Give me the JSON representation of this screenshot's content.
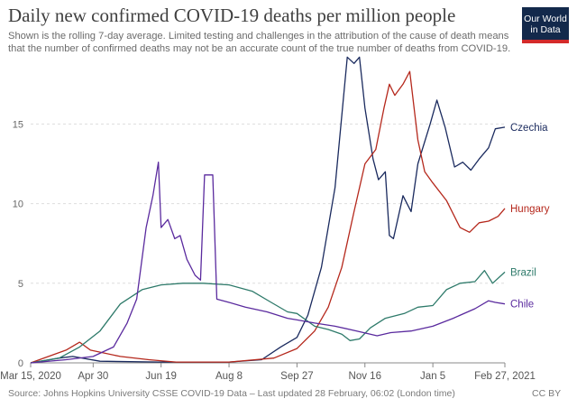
{
  "header": {
    "title": "Daily new confirmed COVID-19 deaths per million people",
    "subtitle": "Shown is the rolling 7-day average. Limited testing and challenges in the attribution of the cause of death means that the number of confirmed deaths may not be an accurate count of the true number of deaths from COVID-19."
  },
  "logo": {
    "line1": "Our World",
    "line2": "in Data",
    "bg": "#13294b",
    "accent": "#d42a2a"
  },
  "footer": {
    "source": "Source: Johns Hopkins University CSSE COVID-19 Data – Last updated 28 February, 06:02 (London time)",
    "license": "CC BY"
  },
  "chart_data": {
    "type": "line",
    "title": "Daily new confirmed COVID-19 deaths per million people",
    "xlabel": "",
    "ylabel": "",
    "x_range": [
      "2020-03-15",
      "2021-02-27"
    ],
    "ylim": [
      0,
      19.5
    ],
    "yticks": [
      0,
      5,
      10,
      15
    ],
    "xticks": [
      {
        "date": "2020-03-15",
        "label": "Mar 15, 2020"
      },
      {
        "date": "2020-04-30",
        "label": "Apr 30"
      },
      {
        "date": "2020-06-19",
        "label": "Jun 19"
      },
      {
        "date": "2020-08-08",
        "label": "Aug 8"
      },
      {
        "date": "2020-09-27",
        "label": "Sep 27"
      },
      {
        "date": "2020-11-16",
        "label": "Nov 16"
      },
      {
        "date": "2021-01-05",
        "label": "Jan 5"
      },
      {
        "date": "2021-02-27",
        "label": "Feb 27, 2021"
      }
    ],
    "grid": "horizontal-dashed",
    "legend": "line-end labels",
    "series": [
      {
        "name": "Czechia",
        "color": "#1a2a5e",
        "points": [
          [
            "2020-03-15",
            0
          ],
          [
            "2020-04-05",
            0.3
          ],
          [
            "2020-04-15",
            0.4
          ],
          [
            "2020-05-05",
            0.1
          ],
          [
            "2020-06-19",
            0.05
          ],
          [
            "2020-08-08",
            0.05
          ],
          [
            "2020-09-01",
            0.2
          ],
          [
            "2020-09-15",
            1
          ],
          [
            "2020-09-27",
            1.6
          ],
          [
            "2020-10-05",
            3
          ],
          [
            "2020-10-15",
            6
          ],
          [
            "2020-10-25",
            11
          ],
          [
            "2020-11-03",
            19.2
          ],
          [
            "2020-11-08",
            18.8
          ],
          [
            "2020-11-12",
            19.2
          ],
          [
            "2020-11-16",
            16
          ],
          [
            "2020-11-22",
            12.8
          ],
          [
            "2020-11-26",
            11.5
          ],
          [
            "2020-12-01",
            12
          ],
          [
            "2020-12-04",
            8
          ],
          [
            "2020-12-07",
            7.8
          ],
          [
            "2020-12-14",
            10.5
          ],
          [
            "2020-12-20",
            9.5
          ],
          [
            "2020-12-25",
            12.5
          ],
          [
            "2021-01-03",
            15
          ],
          [
            "2021-01-08",
            16.5
          ],
          [
            "2021-01-14",
            14.8
          ],
          [
            "2021-01-21",
            12.3
          ],
          [
            "2021-01-27",
            12.6
          ],
          [
            "2021-02-02",
            12.1
          ],
          [
            "2021-02-08",
            12.8
          ],
          [
            "2021-02-15",
            13.5
          ],
          [
            "2021-02-20",
            14.7
          ],
          [
            "2021-02-27",
            14.8
          ]
        ]
      },
      {
        "name": "Hungary",
        "color": "#b5281c",
        "points": [
          [
            "2020-03-15",
            0
          ],
          [
            "2020-04-10",
            0.8
          ],
          [
            "2020-04-20",
            1.3
          ],
          [
            "2020-04-28",
            0.8
          ],
          [
            "2020-05-20",
            0.4
          ],
          [
            "2020-06-10",
            0.2
          ],
          [
            "2020-06-30",
            0.05
          ],
          [
            "2020-08-08",
            0.05
          ],
          [
            "2020-09-10",
            0.3
          ],
          [
            "2020-09-27",
            0.9
          ],
          [
            "2020-10-10",
            2
          ],
          [
            "2020-10-20",
            3.5
          ],
          [
            "2020-10-30",
            6
          ],
          [
            "2020-11-08",
            9.5
          ],
          [
            "2020-11-16",
            12.5
          ],
          [
            "2020-11-24",
            13.4
          ],
          [
            "2020-11-30",
            16
          ],
          [
            "2020-12-04",
            17.5
          ],
          [
            "2020-12-08",
            16.8
          ],
          [
            "2020-12-14",
            17.5
          ],
          [
            "2020-12-19",
            18.3
          ],
          [
            "2020-12-25",
            14
          ],
          [
            "2020-12-30",
            12
          ],
          [
            "2021-01-05",
            11.3
          ],
          [
            "2021-01-15",
            10.2
          ],
          [
            "2021-01-25",
            8.5
          ],
          [
            "2021-02-01",
            8.2
          ],
          [
            "2021-02-08",
            8.8
          ],
          [
            "2021-02-15",
            8.9
          ],
          [
            "2021-02-22",
            9.2
          ],
          [
            "2021-02-27",
            9.7
          ]
        ]
      },
      {
        "name": "Brazil",
        "color": "#2e7a6a",
        "points": [
          [
            "2020-03-15",
            0
          ],
          [
            "2020-04-05",
            0.3
          ],
          [
            "2020-04-20",
            1
          ],
          [
            "2020-05-05",
            2
          ],
          [
            "2020-05-20",
            3.7
          ],
          [
            "2020-06-05",
            4.6
          ],
          [
            "2020-06-19",
            4.9
          ],
          [
            "2020-07-05",
            5
          ],
          [
            "2020-07-20",
            5
          ],
          [
            "2020-08-08",
            4.9
          ],
          [
            "2020-08-25",
            4.5
          ],
          [
            "2020-09-08",
            3.8
          ],
          [
            "2020-09-20",
            3.2
          ],
          [
            "2020-09-27",
            3.1
          ],
          [
            "2020-10-10",
            2.3
          ],
          [
            "2020-10-20",
            2.1
          ],
          [
            "2020-10-30",
            1.8
          ],
          [
            "2020-11-05",
            1.4
          ],
          [
            "2020-11-12",
            1.5
          ],
          [
            "2020-11-20",
            2.2
          ],
          [
            "2020-12-01",
            2.8
          ],
          [
            "2020-12-15",
            3.1
          ],
          [
            "2020-12-25",
            3.5
          ],
          [
            "2021-01-05",
            3.6
          ],
          [
            "2021-01-15",
            4.6
          ],
          [
            "2021-01-25",
            5
          ],
          [
            "2021-02-05",
            5.1
          ],
          [
            "2021-02-12",
            5.8
          ],
          [
            "2021-02-18",
            5
          ],
          [
            "2021-02-27",
            5.7
          ]
        ]
      },
      {
        "name": "Chile",
        "color": "#5a2a9e",
        "points": [
          [
            "2020-03-15",
            0
          ],
          [
            "2020-04-10",
            0.2
          ],
          [
            "2020-04-30",
            0.4
          ],
          [
            "2020-05-15",
            1
          ],
          [
            "2020-05-25",
            2.5
          ],
          [
            "2020-06-01",
            4
          ],
          [
            "2020-06-08",
            8.5
          ],
          [
            "2020-06-13",
            10.5
          ],
          [
            "2020-06-17",
            12.6
          ],
          [
            "2020-06-19",
            8.5
          ],
          [
            "2020-06-24",
            9
          ],
          [
            "2020-06-29",
            7.8
          ],
          [
            "2020-07-03",
            8
          ],
          [
            "2020-07-08",
            6.5
          ],
          [
            "2020-07-14",
            5.5
          ],
          [
            "2020-07-18",
            5.2
          ],
          [
            "2020-07-21",
            11.8
          ],
          [
            "2020-07-24",
            11.8
          ],
          [
            "2020-07-27",
            11.8
          ],
          [
            "2020-07-30",
            4
          ],
          [
            "2020-08-08",
            3.8
          ],
          [
            "2020-08-20",
            3.5
          ],
          [
            "2020-09-05",
            3.2
          ],
          [
            "2020-09-20",
            2.8
          ],
          [
            "2020-09-27",
            2.7
          ],
          [
            "2020-10-10",
            2.5
          ],
          [
            "2020-10-25",
            2.3
          ],
          [
            "2020-11-10",
            2
          ],
          [
            "2020-11-25",
            1.7
          ],
          [
            "2020-12-05",
            1.9
          ],
          [
            "2020-12-20",
            2
          ],
          [
            "2021-01-05",
            2.3
          ],
          [
            "2021-01-20",
            2.8
          ],
          [
            "2021-02-05",
            3.4
          ],
          [
            "2021-02-15",
            3.9
          ],
          [
            "2021-02-20",
            3.8
          ],
          [
            "2021-02-27",
            3.7
          ]
        ]
      }
    ]
  }
}
